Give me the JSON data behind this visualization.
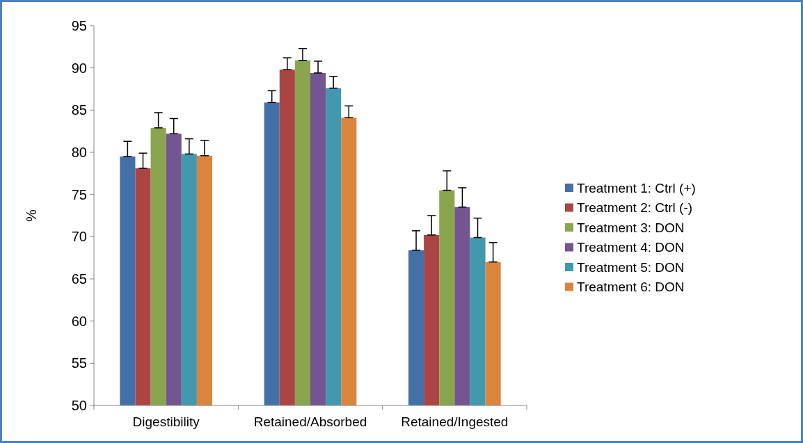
{
  "chart_data": {
    "type": "bar",
    "ylabel": "%",
    "categories": [
      "Digestibility",
      "Retained/Absorbed",
      "Retained/Ingested"
    ],
    "ylim": [
      50,
      95
    ],
    "yticks": [
      50,
      55,
      60,
      65,
      70,
      75,
      80,
      85,
      90,
      95
    ],
    "grid": false,
    "legend": "right",
    "series": [
      {
        "name": "Treatment 1: Ctrl (+)",
        "color": "#4470a8",
        "values": [
          79.5,
          85.9,
          68.4
        ],
        "errors": [
          [
            79.5,
            81.3
          ],
          [
            85.9,
            87.3
          ],
          [
            68.4,
            70.7
          ]
        ]
      },
      {
        "name": "Treatment 2: Ctrl (-)",
        "color": "#ab4543",
        "values": [
          78.1,
          89.8,
          70.2
        ],
        "errors": [
          [
            78.1,
            79.9
          ],
          [
            89.8,
            91.2
          ],
          [
            70.2,
            72.5
          ]
        ]
      },
      {
        "name": "Treatment 3: DON",
        "color": "#8aa54e",
        "values": [
          82.9,
          90.9,
          75.5
        ],
        "errors": [
          [
            82.9,
            84.7
          ],
          [
            90.9,
            92.3
          ],
          [
            75.5,
            77.8
          ]
        ]
      },
      {
        "name": "Treatment 4: DON",
        "color": "#735591",
        "values": [
          82.2,
          89.4,
          73.5
        ],
        "errors": [
          [
            82.2,
            84.0
          ],
          [
            89.4,
            90.8
          ],
          [
            73.5,
            75.8
          ]
        ]
      },
      {
        "name": "Treatment 5: DON",
        "color": "#4298ae",
        "values": [
          79.8,
          87.6,
          69.9
        ],
        "errors": [
          [
            79.8,
            81.6
          ],
          [
            87.6,
            89.0
          ],
          [
            69.9,
            72.2
          ]
        ]
      },
      {
        "name": "Treatment 6: DON",
        "color": "#db843d",
        "values": [
          79.6,
          84.1,
          67.0
        ],
        "errors": [
          [
            79.6,
            81.4
          ],
          [
            84.1,
            85.5
          ],
          [
            67.0,
            69.3
          ]
        ]
      }
    ]
  }
}
